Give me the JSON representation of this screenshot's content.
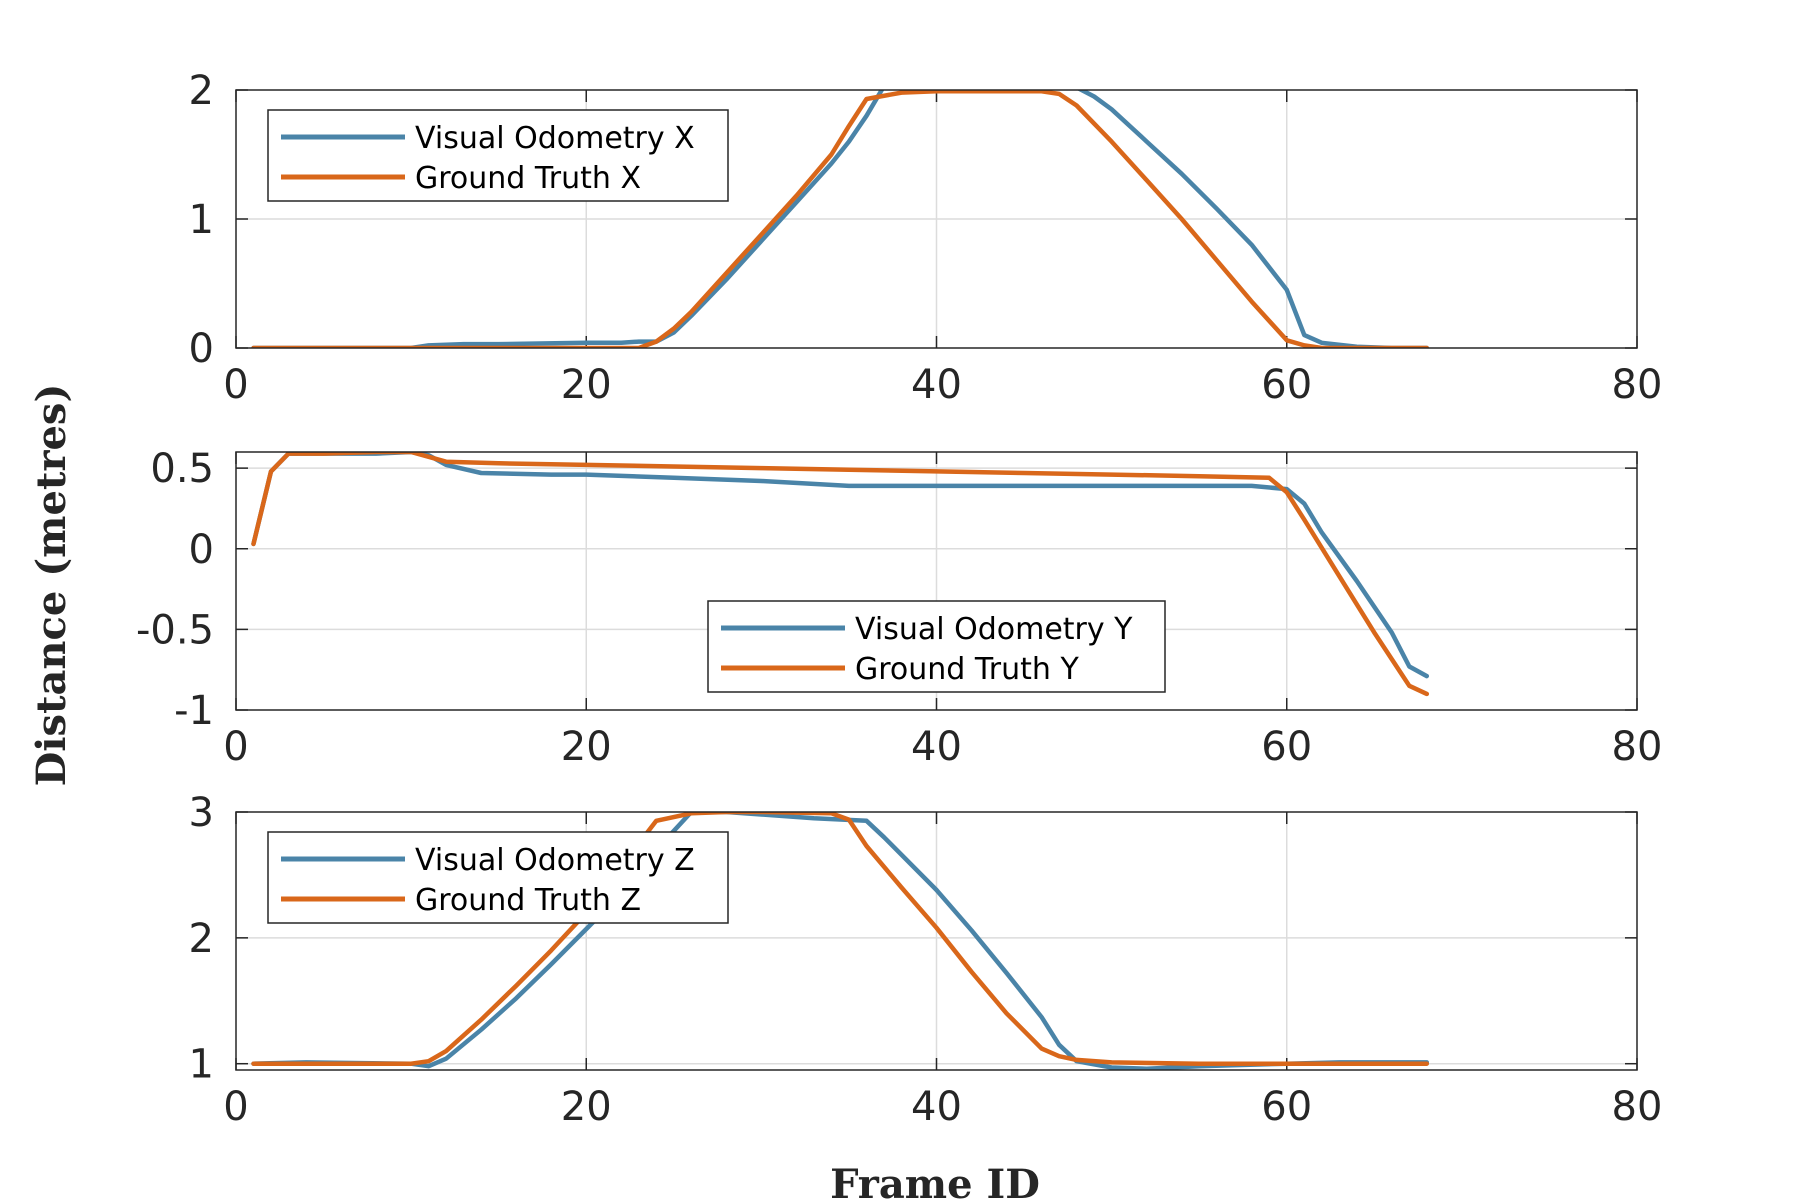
{
  "figure": {
    "ylabel": "Distance (metres)",
    "xlabel": "Frame ID",
    "colors": {
      "vo": "#4a84a8",
      "gt": "#d9671a",
      "grid": "#dcdcdc",
      "axis": "#262626"
    }
  },
  "chart_data": [
    {
      "type": "line",
      "xlim": [
        0,
        80
      ],
      "ylim": [
        0,
        2
      ],
      "xticks": [
        0,
        20,
        40,
        60,
        80
      ],
      "yticks": [
        0,
        1,
        2
      ],
      "xtick_labels": [
        "0",
        "20",
        "40",
        "60",
        "80"
      ],
      "ytick_labels": [
        "0",
        "1",
        "2"
      ],
      "grid": true,
      "legend_position": "top-left",
      "series": [
        {
          "name": "Visual Odometry X",
          "color": "#4a84a8",
          "x": [
            1,
            5,
            10,
            11,
            13,
            15,
            20,
            22,
            23,
            24,
            25,
            26,
            28,
            30,
            32,
            34,
            35,
            36,
            37,
            38,
            40,
            42,
            44,
            46,
            48,
            49,
            50,
            52,
            54,
            56,
            58,
            60,
            61,
            62,
            64,
            66,
            68
          ],
          "y": [
            0.0,
            0.0,
            0.0,
            0.02,
            0.03,
            0.03,
            0.04,
            0.04,
            0.05,
            0.05,
            0.12,
            0.25,
            0.53,
            0.83,
            1.13,
            1.43,
            1.6,
            1.8,
            2.03,
            2.02,
            2.02,
            2.02,
            2.03,
            2.02,
            2.02,
            1.95,
            1.85,
            1.6,
            1.35,
            1.08,
            0.8,
            0.45,
            0.1,
            0.04,
            0.01,
            0.0,
            0.0
          ]
        },
        {
          "name": "Ground Truth X",
          "color": "#d9671a",
          "x": [
            1,
            5,
            10,
            15,
            20,
            23,
            24,
            25,
            26,
            28,
            30,
            32,
            34,
            35,
            36,
            38,
            40,
            42,
            44,
            46,
            47,
            48,
            50,
            52,
            54,
            56,
            58,
            60,
            61,
            62,
            64,
            66,
            68
          ],
          "y": [
            0.0,
            0.0,
            0.0,
            0.0,
            0.0,
            0.0,
            0.05,
            0.15,
            0.28,
            0.58,
            0.88,
            1.18,
            1.5,
            1.72,
            1.93,
            1.98,
            1.99,
            1.99,
            1.99,
            1.99,
            1.97,
            1.88,
            1.6,
            1.3,
            1.0,
            0.68,
            0.36,
            0.06,
            0.02,
            0.0,
            0.0,
            0.0,
            0.0
          ]
        }
      ]
    },
    {
      "type": "line",
      "xlim": [
        0,
        80
      ],
      "ylim": [
        -1,
        0.6
      ],
      "xticks": [
        0,
        20,
        40,
        60,
        80
      ],
      "yticks": [
        -1,
        -0.5,
        0,
        0.5
      ],
      "xtick_labels": [
        "0",
        "20",
        "40",
        "60",
        "80"
      ],
      "ytick_labels": [
        "-1",
        "-0.5",
        "0",
        "0.5"
      ],
      "grid": true,
      "legend_position": "bottom-center",
      "series": [
        {
          "name": "Visual Odometry Y",
          "color": "#4a84a8",
          "x": [
            1,
            2,
            3,
            5,
            8,
            10,
            11,
            12,
            14,
            18,
            20,
            25,
            30,
            35,
            40,
            45,
            50,
            55,
            58,
            60,
            61,
            62,
            64,
            66,
            67,
            68
          ],
          "y": [
            0.03,
            0.48,
            0.59,
            0.59,
            0.59,
            0.6,
            0.58,
            0.52,
            0.47,
            0.46,
            0.46,
            0.44,
            0.42,
            0.39,
            0.39,
            0.39,
            0.39,
            0.39,
            0.39,
            0.37,
            0.28,
            0.1,
            -0.2,
            -0.52,
            -0.73,
            -0.79
          ]
        },
        {
          "name": "Ground Truth Y",
          "color": "#d9671a",
          "x": [
            1,
            2,
            3,
            5,
            8,
            10,
            11,
            12,
            15,
            20,
            25,
            30,
            35,
            40,
            45,
            50,
            55,
            59,
            60,
            61,
            63,
            65,
            67,
            68
          ],
          "y": [
            0.03,
            0.48,
            0.59,
            0.59,
            0.6,
            0.6,
            0.57,
            0.54,
            0.53,
            0.52,
            0.51,
            0.5,
            0.49,
            0.48,
            0.47,
            0.46,
            0.45,
            0.44,
            0.35,
            0.18,
            -0.17,
            -0.52,
            -0.85,
            -0.9
          ]
        }
      ]
    },
    {
      "type": "line",
      "xlim": [
        0,
        80
      ],
      "ylim": [
        0.95,
        3
      ],
      "xticks": [
        0,
        20,
        40,
        60,
        80
      ],
      "yticks": [
        1,
        2,
        3
      ],
      "xtick_labels": [
        "0",
        "20",
        "40",
        "60",
        "80"
      ],
      "ytick_labels": [
        "1",
        "2",
        "3"
      ],
      "grid": true,
      "legend_position": "top-left",
      "series": [
        {
          "name": "Visual Odometry Z",
          "color": "#4a84a8",
          "x": [
            1,
            4,
            10,
            11,
            12,
            14,
            16,
            18,
            20,
            22,
            24,
            26,
            28,
            30,
            33,
            36,
            37,
            40,
            42,
            44,
            46,
            47,
            48,
            50,
            52,
            55,
            60,
            63,
            68
          ],
          "y": [
            1.0,
            1.01,
            1.0,
            0.98,
            1.04,
            1.27,
            1.52,
            1.79,
            2.07,
            2.35,
            2.7,
            3.0,
            3.0,
            2.98,
            2.95,
            2.93,
            2.8,
            2.38,
            2.06,
            1.72,
            1.37,
            1.15,
            1.02,
            0.97,
            0.96,
            0.98,
            1.0,
            1.01,
            1.01
          ]
        },
        {
          "name": "Ground Truth Z",
          "color": "#d9671a",
          "x": [
            1,
            5,
            10,
            11,
            12,
            14,
            16,
            18,
            20,
            22,
            24,
            26,
            28,
            30,
            34,
            35,
            36,
            38,
            40,
            42,
            44,
            46,
            47,
            48,
            50,
            55,
            60,
            65,
            68
          ],
          "y": [
            1.0,
            1.0,
            1.0,
            1.02,
            1.1,
            1.35,
            1.62,
            1.9,
            2.2,
            2.57,
            2.93,
            2.99,
            3.0,
            3.0,
            2.99,
            2.94,
            2.73,
            2.4,
            2.08,
            1.73,
            1.4,
            1.12,
            1.06,
            1.03,
            1.01,
            1.0,
            1.0,
            1.0,
            1.0
          ]
        }
      ]
    }
  ]
}
